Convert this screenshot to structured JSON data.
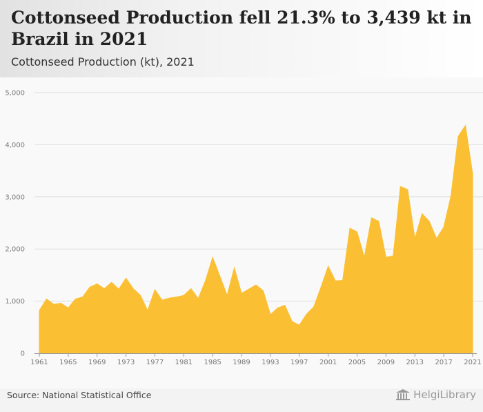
{
  "header": {
    "title": "Cottonseed Production fell 21.3% to 3,439 kt in Brazil in 2021",
    "subtitle": "Cottonseed Production (kt), 2021"
  },
  "footer": {
    "source": "Source: National Statistical Office",
    "brand": "HelgiLibrary"
  },
  "colors": {
    "fill": "#fbbf33",
    "grid": "#dddddd",
    "axis": "#999999",
    "label": "#777777"
  },
  "chart_data": {
    "type": "area",
    "title": "Cottonseed Production fell 21.3% to 3,439 kt in Brazil in 2021",
    "subtitle": "Cottonseed Production (kt), 2021",
    "xlabel": "",
    "ylabel": "",
    "x": [
      1961,
      1962,
      1963,
      1964,
      1965,
      1966,
      1967,
      1968,
      1969,
      1970,
      1971,
      1972,
      1973,
      1974,
      1975,
      1976,
      1977,
      1978,
      1979,
      1980,
      1981,
      1982,
      1983,
      1984,
      1985,
      1986,
      1987,
      1988,
      1989,
      1990,
      1991,
      1992,
      1993,
      1994,
      1995,
      1996,
      1997,
      1998,
      1999,
      2000,
      2001,
      2002,
      2003,
      2004,
      2005,
      2006,
      2007,
      2008,
      2009,
      2010,
      2011,
      2012,
      2013,
      2014,
      2015,
      2016,
      2017,
      2018,
      2019,
      2020,
      2021
    ],
    "values": [
      820,
      1040,
      940,
      960,
      870,
      1040,
      1080,
      1270,
      1330,
      1240,
      1360,
      1230,
      1440,
      1240,
      1110,
      820,
      1220,
      1020,
      1060,
      1080,
      1110,
      1240,
      1050,
      1390,
      1840,
      1480,
      1110,
      1640,
      1150,
      1230,
      1310,
      1200,
      740,
      870,
      920,
      610,
      540,
      750,
      890,
      1270,
      1670,
      1390,
      1400,
      2400,
      2330,
      1840,
      2600,
      2530,
      1840,
      1870,
      3200,
      3140,
      2200,
      2680,
      2530,
      2200,
      2420,
      3020,
      4160,
      4370,
      3439
    ],
    "xticks": [
      "1961",
      "1965",
      "1969",
      "1973",
      "1977",
      "1981",
      "1985",
      "1989",
      "1993",
      "1997",
      "2001",
      "2005",
      "2009",
      "2013",
      "2017",
      "2021"
    ],
    "yticks": [
      "0",
      "1,000",
      "2,000",
      "3,000",
      "4,000",
      "5,000"
    ],
    "ylim": [
      0,
      5000
    ],
    "xlim": [
      1961,
      2021
    ],
    "grid": true,
    "legend": "none",
    "source": "Source: National Statistical Office"
  }
}
